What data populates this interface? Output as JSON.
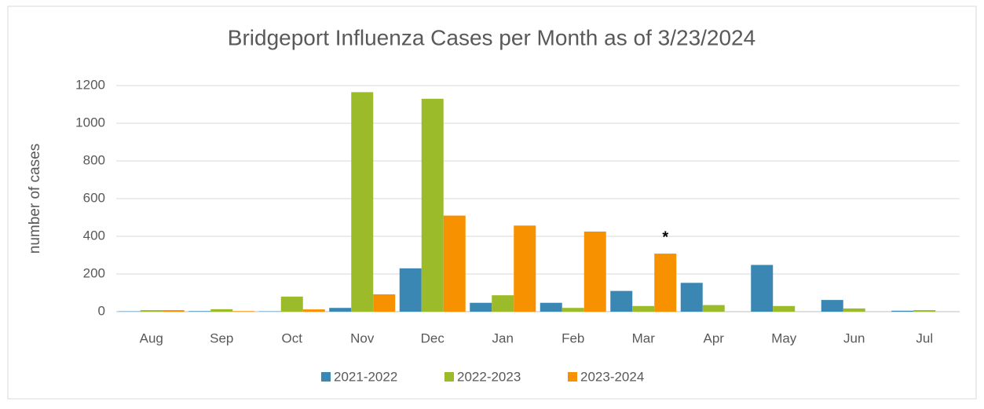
{
  "chart_data": {
    "type": "bar",
    "title": "Bridgeport Influenza Cases per Month as of 3/23/2024",
    "y_label": "number of cases",
    "categories": [
      "Aug",
      "Sep",
      "Oct",
      "Nov",
      "Dec",
      "Jan",
      "Feb",
      "Mar",
      "Apr",
      "May",
      "Jun",
      "Jul"
    ],
    "series": [
      {
        "name": "2021-2022",
        "color": "#3b87b3",
        "values": [
          2,
          3,
          2,
          20,
          230,
          47,
          47,
          110,
          153,
          248,
          62,
          5
        ]
      },
      {
        "name": "2022-2023",
        "color": "#9bbb2a",
        "values": [
          8,
          13,
          80,
          1165,
          1130,
          87,
          20,
          30,
          35,
          30,
          17,
          8
        ]
      },
      {
        "name": "2023-2024",
        "color": "#f79100",
        "values": [
          8,
          3,
          12,
          92,
          510,
          457,
          425,
          308,
          null,
          null,
          null,
          null
        ]
      }
    ],
    "annotation": "*",
    "ylim": [
      0,
      1200
    ],
    "yticks": [
      0,
      200,
      400,
      600,
      800,
      1000,
      1200
    ],
    "grid": true,
    "legend": "bottom"
  }
}
